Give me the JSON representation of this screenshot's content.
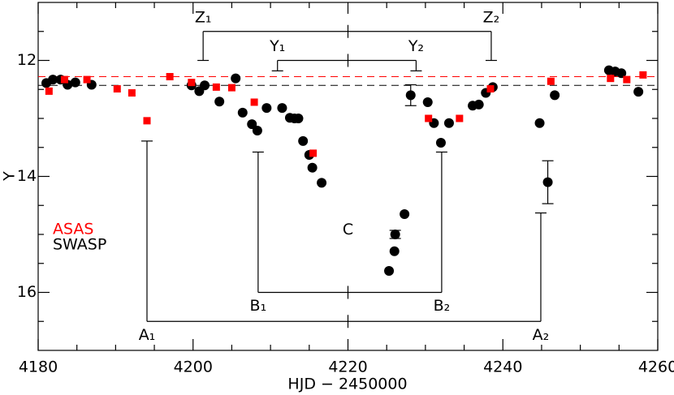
{
  "chart_data": {
    "type": "scatter",
    "xlabel": "HJD − 2450000",
    "ylabel": "Y",
    "xlim": [
      4180,
      4260
    ],
    "ylim": [
      17,
      11
    ],
    "xticks": [
      4180,
      4200,
      4220,
      4240,
      4260
    ],
    "yticks": [
      12,
      14,
      16
    ],
    "xticks_minor": [
      4185,
      4190,
      4195,
      4205,
      4210,
      4215,
      4225,
      4230,
      4235,
      4245,
      4250,
      4255
    ],
    "yticks_minor": [
      11.5,
      12.5,
      13,
      13.5,
      14.5,
      15,
      15.5,
      16.5
    ],
    "series": [
      {
        "name": "SWASP",
        "color": "#000000",
        "marker": "circle",
        "x": [
          4181.05,
          4181.9,
          4182.9,
          4183.8,
          4184.8,
          4186.9,
          4199.8,
          4200.8,
          4201.5,
          4203.4,
          4205.5,
          4206.4,
          4207.6,
          4208.3,
          4209.5,
          4211.5,
          4212.5,
          4213.1,
          4213.6,
          4214.2,
          4215.0,
          4215.4,
          4216.6,
          4225.3,
          4226.0,
          4226.1,
          4227.3,
          4228.1,
          4230.3,
          4231.1,
          4232.0,
          4233.05,
          4236.1,
          4236.9,
          4237.8,
          4238.7,
          4244.75,
          4245.8,
          4246.7,
          4253.7,
          4254.5,
          4255.3,
          4257.5
        ],
        "values": [
          12.39,
          12.33,
          12.33,
          12.42,
          12.38,
          12.42,
          12.43,
          12.53,
          12.43,
          12.71,
          12.31,
          12.9,
          13.1,
          13.21,
          12.82,
          12.82,
          12.99,
          13.0,
          13.0,
          13.39,
          13.63,
          13.85,
          14.11,
          15.63,
          15.29,
          15.0,
          14.65,
          12.6,
          12.72,
          13.08,
          13.42,
          13.08,
          12.78,
          12.76,
          12.56,
          12.46,
          13.08,
          14.1,
          12.6,
          12.17,
          12.19,
          12.22,
          12.54
        ],
        "errors": [
          null,
          null,
          null,
          null,
          null,
          null,
          null,
          null,
          null,
          null,
          null,
          null,
          null,
          null,
          null,
          null,
          null,
          null,
          null,
          null,
          null,
          null,
          null,
          null,
          null,
          0.07,
          null,
          0.18,
          null,
          null,
          null,
          null,
          null,
          null,
          null,
          null,
          null,
          0.37,
          null,
          null,
          null,
          null,
          null
        ]
      },
      {
        "name": "ASAS",
        "color": "#ff0000",
        "marker": "square",
        "x": [
          4181.4,
          4183.4,
          4186.3,
          4190.2,
          4192.1,
          4194.05,
          4197.0,
          4199.8,
          4203.0,
          4205.0,
          4207.9,
          4215.5,
          4230.4,
          4234.4,
          4238.4,
          4246.2,
          4253.9,
          4256.0,
          4258.1
        ],
        "values": [
          12.53,
          12.33,
          12.33,
          12.49,
          12.56,
          13.04,
          12.28,
          12.38,
          12.46,
          12.47,
          12.72,
          13.6,
          13.0,
          13.0,
          12.49,
          12.36,
          12.31,
          12.33,
          12.25
        ]
      }
    ],
    "reference_lines": [
      {
        "value": 12.28,
        "color": "#ff0000"
      },
      {
        "value": 12.43,
        "color": "#000000"
      }
    ],
    "brackets": [
      {
        "labels": [
          "Z₁",
          "Z₂"
        ],
        "x": [
          4201.3,
          4238.5
        ],
        "bar": 11.5,
        "ends": [
          12.0,
          12.0
        ]
      },
      {
        "labels": [
          "Y₁",
          "Y₂"
        ],
        "x": [
          4210.9,
          4228.8
        ],
        "bar": 12.0,
        "ends": [
          12.18,
          12.18
        ]
      },
      {
        "labels": [
          "B₁",
          "B₂"
        ],
        "x": [
          4208.4,
          4232.1
        ],
        "bar": 16.0,
        "ends": [
          13.58,
          13.58
        ]
      },
      {
        "labels": [
          "A₁",
          "A₂"
        ],
        "x": [
          4194.05,
          4244.9
        ],
        "bar": 16.5,
        "ends": [
          13.39,
          14.63
        ]
      }
    ],
    "annotations": [
      {
        "text": "C",
        "x": 4220,
        "y": 14.92
      }
    ]
  }
}
